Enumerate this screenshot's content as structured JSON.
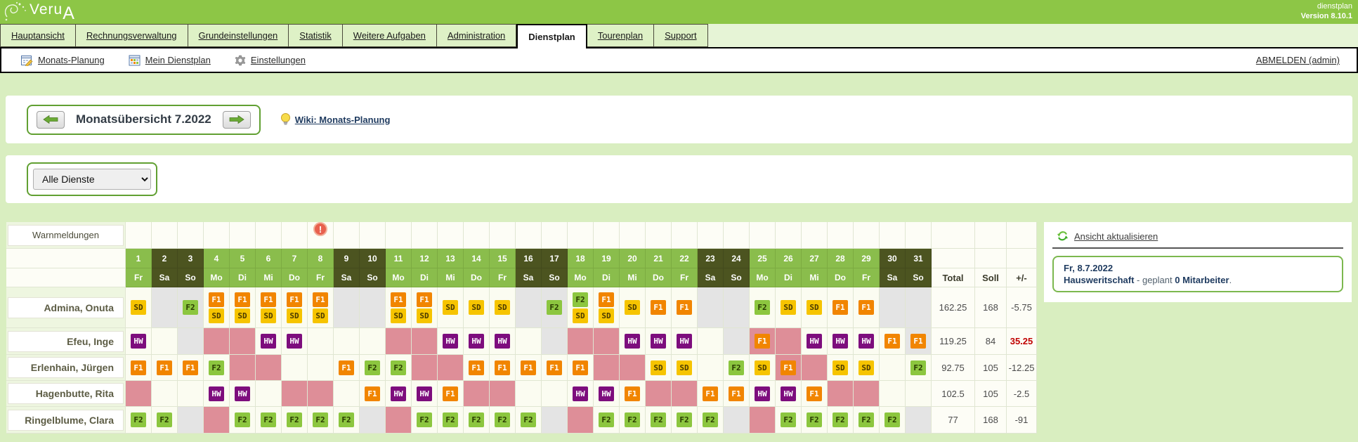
{
  "app": {
    "logo": "VeruA",
    "product": "dienstplan",
    "version": "Version 8.10.1"
  },
  "tabs": [
    {
      "label": "Hauptansicht",
      "active": false
    },
    {
      "label": "Rechnungsverwaltung",
      "active": false
    },
    {
      "label": "Grundeinstellungen",
      "active": false
    },
    {
      "label": "Statistik",
      "active": false
    },
    {
      "label": "Weitere Aufgaben",
      "active": false
    },
    {
      "label": "Administration",
      "active": false
    },
    {
      "label": "Dienstplan",
      "active": true
    },
    {
      "label": "Tourenplan",
      "active": false
    },
    {
      "label": "Support",
      "active": false
    }
  ],
  "subnav": {
    "items": [
      {
        "label": "Monats-Planung",
        "icon": "calendar-edit-icon"
      },
      {
        "label": "Mein Dienstplan",
        "icon": "calendar-icon"
      },
      {
        "label": "Einstellungen",
        "icon": "gear-icon"
      }
    ],
    "logout": "ABMELDEN (admin)"
  },
  "month_nav": {
    "title": "Monatsübersicht 7.2022",
    "wiki_label": "Wiki: Monats-Planung"
  },
  "filter": {
    "selected": "Alle Dienste"
  },
  "shift_types": {
    "SD": {
      "bg": "#f6c400",
      "fg": "#4a3a00"
    },
    "F1": {
      "bg": "#f18500",
      "fg": "#ffffff"
    },
    "F2": {
      "bg": "#8cc63f",
      "fg": "#293a00"
    },
    "HW": {
      "bg": "#7d0d7d",
      "fg": "#ffffff"
    }
  },
  "colors": {
    "header_green": "#8dc646",
    "weekend_header": "#4c5420",
    "weekday_header": "#8abd4c",
    "absence_pink": "#de8e98",
    "blocked_gray": "#e4e4e4",
    "diff_negative_highlight": "#c00000"
  },
  "roster": {
    "warn_label": "Warnmeldungen",
    "warning_day": 8,
    "totals_headers": [
      "Total",
      "Soll",
      "+/-"
    ],
    "days": [
      {
        "n": "1",
        "dow": "Fr",
        "weekend": false
      },
      {
        "n": "2",
        "dow": "Sa",
        "weekend": true
      },
      {
        "n": "3",
        "dow": "So",
        "weekend": true
      },
      {
        "n": "4",
        "dow": "Mo",
        "weekend": false
      },
      {
        "n": "5",
        "dow": "Di",
        "weekend": false
      },
      {
        "n": "6",
        "dow": "Mi",
        "weekend": false
      },
      {
        "n": "7",
        "dow": "Do",
        "weekend": false
      },
      {
        "n": "8",
        "dow": "Fr",
        "weekend": false
      },
      {
        "n": "9",
        "dow": "Sa",
        "weekend": true
      },
      {
        "n": "10",
        "dow": "So",
        "weekend": true
      },
      {
        "n": "11",
        "dow": "Mo",
        "weekend": false
      },
      {
        "n": "12",
        "dow": "Di",
        "weekend": false
      },
      {
        "n": "13",
        "dow": "Mi",
        "weekend": false
      },
      {
        "n": "14",
        "dow": "Do",
        "weekend": false
      },
      {
        "n": "15",
        "dow": "Fr",
        "weekend": false
      },
      {
        "n": "16",
        "dow": "Sa",
        "weekend": true
      },
      {
        "n": "17",
        "dow": "So",
        "weekend": true
      },
      {
        "n": "18",
        "dow": "Mo",
        "weekend": false
      },
      {
        "n": "19",
        "dow": "Di",
        "weekend": false
      },
      {
        "n": "20",
        "dow": "Mi",
        "weekend": false
      },
      {
        "n": "21",
        "dow": "Do",
        "weekend": false
      },
      {
        "n": "22",
        "dow": "Fr",
        "weekend": false
      },
      {
        "n": "23",
        "dow": "Sa",
        "weekend": true
      },
      {
        "n": "24",
        "dow": "So",
        "weekend": true
      },
      {
        "n": "25",
        "dow": "Mo",
        "weekend": false
      },
      {
        "n": "26",
        "dow": "Di",
        "weekend": false
      },
      {
        "n": "27",
        "dow": "Mi",
        "weekend": false
      },
      {
        "n": "28",
        "dow": "Do",
        "weekend": false
      },
      {
        "n": "29",
        "dow": "Fr",
        "weekend": false
      },
      {
        "n": "30",
        "dow": "Sa",
        "weekend": true
      },
      {
        "n": "31",
        "dow": "So",
        "weekend": true
      }
    ],
    "employees": [
      {
        "name": "Admina, Onuta",
        "total": "162.25",
        "soll": "168",
        "diff": "-5.75",
        "diff_highlight": false,
        "cells": [
          "SD",
          "g:",
          "g:F2",
          "F1+SD",
          "F1+SD",
          "F1+SD",
          "F1+SD",
          "F1+SD",
          "g:",
          "g:",
          "F1+SD",
          "F1+SD",
          "SD",
          "SD",
          "SD",
          "g:",
          "g:F2",
          "F2+SD",
          "F1+SD",
          "SD",
          "F1",
          "F1",
          "g:",
          "g:",
          "F2",
          "SD",
          "SD",
          "F1",
          "F1",
          "g:",
          "g:"
        ]
      },
      {
        "name": "Efeu, Inge",
        "total": "119.25",
        "soll": "84",
        "diff": "35.25",
        "diff_highlight": true,
        "cells": [
          "HW",
          "",
          "g:",
          "p:",
          "p:",
          "HW",
          "HW",
          "",
          "",
          "",
          "p:",
          "p:",
          "HW",
          "HW",
          "HW",
          "",
          "g:",
          "p:",
          "p:",
          "HW",
          "HW",
          "HW",
          "",
          "g:",
          "p:F1",
          "p:",
          "HW",
          "HW",
          "HW",
          "F1",
          "g:F1"
        ]
      },
      {
        "name": "Erlenhain, Jürgen",
        "total": "92.75",
        "soll": "105",
        "diff": "-12.25",
        "diff_highlight": false,
        "cells": [
          "F1",
          "F1",
          "F1",
          "F2",
          "p:",
          "p:",
          "",
          "",
          "F1",
          "F2",
          "F2",
          "p:",
          "p:",
          "F1",
          "F1",
          "F1",
          "F1",
          "F1",
          "p:",
          "p:",
          "SD",
          "SD",
          "",
          "F2",
          "SD",
          "p:F1",
          "p:",
          "SD",
          "SD",
          "",
          "F2"
        ]
      },
      {
        "name": "Hagenbutte, Rita",
        "total": "102.5",
        "soll": "105",
        "diff": "-2.5",
        "diff_highlight": false,
        "cells": [
          "p:",
          "",
          "",
          "HW",
          "HW",
          "",
          "p:",
          "p:",
          "",
          "F1",
          "HW",
          "HW",
          "F1",
          "p:",
          "p:",
          "",
          "",
          "HW",
          "HW",
          "F1",
          "p:",
          "p:",
          "F1",
          "F1",
          "HW",
          "HW",
          "F1",
          "p:",
          "p:",
          "",
          ""
        ]
      },
      {
        "name": "Ringelblume, Clara",
        "total": "77",
        "soll": "168",
        "diff": "-91",
        "diff_highlight": false,
        "cells": [
          "F2",
          "F2",
          "g:",
          "p:",
          "F2",
          "F2",
          "F2",
          "F2",
          "F2",
          "g:",
          "p:",
          "F2",
          "F2",
          "F2",
          "F2",
          "F2",
          "g:",
          "p:",
          "F2",
          "F2",
          "F2",
          "F2",
          "F2",
          "g:",
          "p:",
          "F2",
          "F2",
          "F2",
          "F2",
          "F2",
          "g:"
        ]
      }
    ]
  },
  "right_panel": {
    "refresh_label": "Ansicht aktualisieren",
    "date": "Fr, 8.7.2022",
    "group": "Hausweritschaft",
    "middle": " - geplant ",
    "count": "0 Mitarbeiter",
    "end": "."
  }
}
